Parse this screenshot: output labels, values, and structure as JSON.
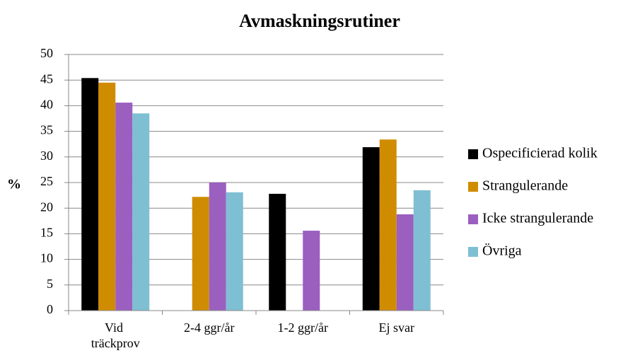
{
  "chart_data": {
    "type": "bar",
    "title": "Avmaskningsrutiner",
    "y_label": "%",
    "categories": [
      "Vid träckprov",
      "2-4 ggr/år",
      "1-2 ggr/år",
      "Ej svar"
    ],
    "series": [
      {
        "name": "Ospecificierad kolik",
        "color": "#000000",
        "values": [
          45.4,
          0,
          22.8,
          31.9
        ]
      },
      {
        "name": "Strangulerande",
        "color": "#d08c00",
        "values": [
          44.5,
          22.2,
          0,
          33.4
        ]
      },
      {
        "name": "Icke strangulerande",
        "color": "#9b5fc0",
        "values": [
          40.6,
          25.0,
          15.6,
          18.8
        ]
      },
      {
        "name": "Övriga",
        "color": "#7fbfd3",
        "values": [
          38.5,
          23.1,
          0,
          23.5
        ]
      }
    ],
    "ylim": [
      0,
      50
    ],
    "yticks": [
      0,
      5,
      10,
      15,
      20,
      25,
      30,
      35,
      40,
      45,
      50
    ],
    "grid": true,
    "legend": "right"
  }
}
